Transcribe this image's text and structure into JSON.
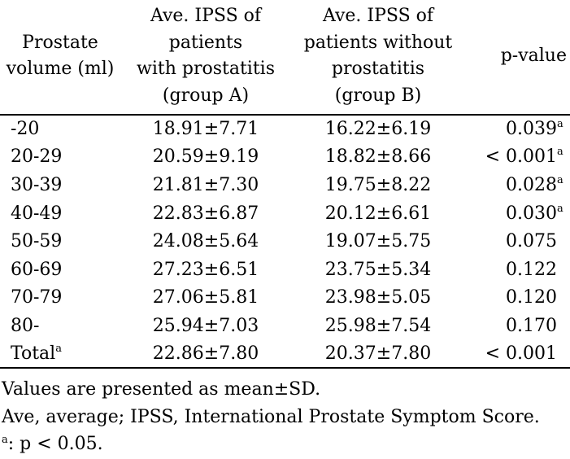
{
  "table": {
    "header": {
      "col_volume": "Prostate\nvolume (ml)",
      "col_group_a": "Ave. IPSS of\npatients\nwith prostatitis\n(group A)",
      "col_group_b": "Ave. IPSS of\npatients without\nprostatitis\n(group B)",
      "col_p_value": "p-value"
    },
    "rows": [
      {
        "volume": "-20",
        "volume_sup": "",
        "group_a": "18.91±7.71",
        "group_b": "16.22±6.19",
        "p_value": "0.039",
        "p_sup": "a"
      },
      {
        "volume": "20-29",
        "volume_sup": "",
        "group_a": "20.59±9.19",
        "group_b": "18.82±8.66",
        "p_value": "< 0.001",
        "p_sup": "a"
      },
      {
        "volume": "30-39",
        "volume_sup": "",
        "group_a": "21.81±7.30",
        "group_b": "19.75±8.22",
        "p_value": "0.028",
        "p_sup": "a"
      },
      {
        "volume": "40-49",
        "volume_sup": "",
        "group_a": "22.83±6.87",
        "group_b": "20.12±6.61",
        "p_value": "0.030",
        "p_sup": "a"
      },
      {
        "volume": "50-59",
        "volume_sup": "",
        "group_a": "24.08±5.64",
        "group_b": "19.07±5.75",
        "p_value": "0.075",
        "p_sup": ""
      },
      {
        "volume": "60-69",
        "volume_sup": "",
        "group_a": "27.23±6.51",
        "group_b": "23.75±5.34",
        "p_value": "0.122",
        "p_sup": ""
      },
      {
        "volume": "70-79",
        "volume_sup": "",
        "group_a": "27.06±5.81",
        "group_b": "23.98±5.05",
        "p_value": "0.120",
        "p_sup": ""
      },
      {
        "volume": "80-",
        "volume_sup": "",
        "group_a": "25.94±7.03",
        "group_b": "25.98±7.54",
        "p_value": "0.170",
        "p_sup": ""
      },
      {
        "volume": "Total",
        "volume_sup": "a",
        "group_a": "22.86±7.80",
        "group_b": "20.37±7.80",
        "p_value": "< 0.001",
        "p_sup": ""
      }
    ]
  },
  "footnotes": {
    "line1": "Values are presented as mean±SD.",
    "line2": "Ave, average; IPSS, International Prostate Symptom Score.",
    "line3_sup": "a",
    "line3_text": ": p < 0.05."
  }
}
